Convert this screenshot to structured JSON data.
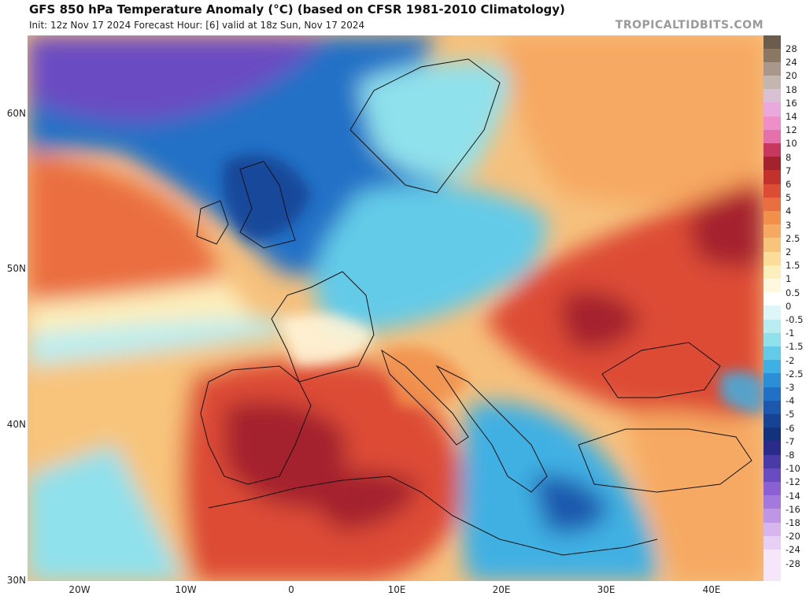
{
  "title": "GFS 850 hPa Temperature Anomaly (°C) (based on CFSR 1981-2010 Climatology)",
  "subtitle": "Init: 12z Nov 17 2024   Forecast Hour: [6]   valid at 18z Sun, Nov 17 2024",
  "brand": "TROPICALTIDBITS.COM",
  "map": {
    "lat_labels": [
      "60N",
      "50N",
      "40N",
      "30N"
    ],
    "lon_labels": [
      "20W",
      "10W",
      "0",
      "10E",
      "20E",
      "30E",
      "40E"
    ]
  },
  "colorbar": {
    "labels": [
      "28",
      "24",
      "20",
      "18",
      "16",
      "14",
      "12",
      "10",
      "8",
      "7",
      "6",
      "5",
      "4",
      "3",
      "2.5",
      "2",
      "1.5",
      "1",
      "0.5",
      "0",
      "-0.5",
      "-1",
      "-1.5",
      "-2",
      "-2.5",
      "-3",
      "-4",
      "-5",
      "-6",
      "-7",
      "-8",
      "-10",
      "-12",
      "-14",
      "-16",
      "-18",
      "-20",
      "-24",
      "-28"
    ],
    "colors": [
      "#6b5c4b",
      "#8a7865",
      "#a8978a",
      "#c3b5b0",
      "#d9c0d2",
      "#e9aadb",
      "#ef8fc8",
      "#e571ac",
      "#c8385e",
      "#a4222d",
      "#c3312c",
      "#dd4c34",
      "#ea6e3f",
      "#f18f4b",
      "#f6a962",
      "#f8c47c",
      "#fbdc98",
      "#fdefbb",
      "#fff8de",
      "#ffffff",
      "#dff6f8",
      "#b8eef2",
      "#8fe1ec",
      "#63cbe8",
      "#3fb0e3",
      "#2a8fd7",
      "#2071c6",
      "#1b58ae",
      "#164393",
      "#12327c",
      "#2a2a8c",
      "#4a3aa8",
      "#6a4cc2",
      "#8a60d4",
      "#a479de",
      "#bf96e6",
      "#d7b5ee",
      "#e8d0f4",
      "#f5e6fa"
    ]
  }
}
